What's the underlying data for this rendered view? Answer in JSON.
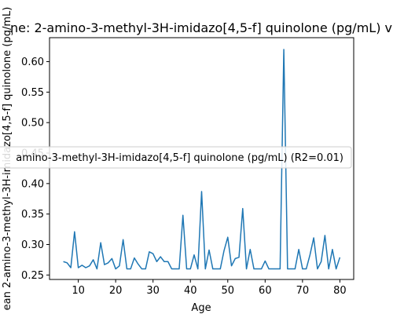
{
  "chart_data": {
    "type": "line",
    "title": "ne: 2-amino-3-methyl-3H-imidazo[4,5-f] quinolone (pg/mL) v",
    "xlabel": "Age",
    "ylabel": "ean 2-amino-3-methyl-3H-imidazo[4,5-f] quinolone (pg/mL)",
    "xlim": [
      2.3,
      83.7
    ],
    "ylim": [
      0.2427,
      0.6393
    ],
    "x_ticks": [
      10,
      20,
      30,
      40,
      50,
      60,
      70,
      80
    ],
    "x_tick_labels": [
      "10",
      "20",
      "30",
      "40",
      "50",
      "60",
      "70",
      "80"
    ],
    "y_ticks": [
      0.25,
      0.3,
      0.35,
      0.4,
      0.45,
      0.5,
      0.55,
      0.6
    ],
    "y_tick_labels": [
      "0.25",
      "0.30",
      "0.35",
      "0.40",
      "0.45",
      "0.50",
      "0.55",
      "0.60"
    ],
    "legend": {
      "text": "amino-3-methyl-3H-imidazo[4,5-f] quinolone (pg/mL) (R2=0.01)",
      "placement": "center"
    },
    "grid": false,
    "series": [
      {
        "color": "#1f77b4",
        "x": [
          6,
          7,
          8,
          9,
          10,
          11,
          12,
          13,
          14,
          15,
          16,
          17,
          18,
          19,
          20,
          21,
          22,
          23,
          24,
          25,
          26,
          27,
          28,
          29,
          30,
          31,
          32,
          33,
          34,
          35,
          36,
          37,
          38,
          39,
          40,
          41,
          42,
          43,
          44,
          45,
          46,
          47,
          48,
          49,
          50,
          51,
          52,
          53,
          54,
          55,
          56,
          57,
          58,
          59,
          60,
          61,
          62,
          63,
          64,
          65,
          66,
          67,
          68,
          69,
          70,
          71,
          72,
          73,
          74,
          75,
          76,
          77,
          78,
          79,
          80
        ],
        "values": [
          0.272,
          0.27,
          0.262,
          0.321,
          0.262,
          0.266,
          0.262,
          0.265,
          0.275,
          0.26,
          0.303,
          0.267,
          0.27,
          0.277,
          0.26,
          0.265,
          0.308,
          0.26,
          0.26,
          0.278,
          0.268,
          0.26,
          0.26,
          0.288,
          0.285,
          0.272,
          0.28,
          0.272,
          0.272,
          0.26,
          0.26,
          0.26,
          0.348,
          0.26,
          0.26,
          0.283,
          0.26,
          0.387,
          0.26,
          0.291,
          0.26,
          0.26,
          0.26,
          0.29,
          0.312,
          0.265,
          0.277,
          0.279,
          0.359,
          0.26,
          0.292,
          0.26,
          0.26,
          0.26,
          0.273,
          0.26,
          0.26,
          0.26,
          0.26,
          0.62,
          0.26,
          0.26,
          0.26,
          0.292,
          0.26,
          0.26,
          0.283,
          0.311,
          0.26,
          0.272,
          0.315,
          0.26,
          0.292,
          0.26,
          0.279
        ]
      }
    ]
  }
}
